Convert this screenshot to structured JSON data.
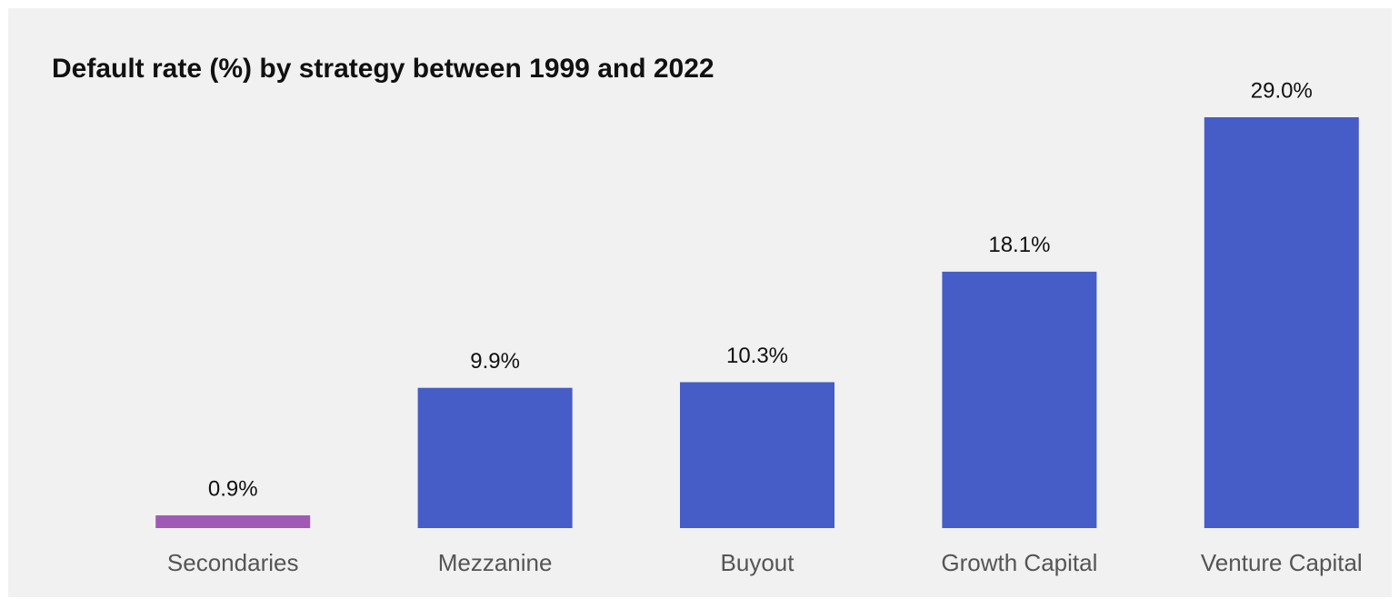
{
  "chart_data": {
    "type": "bar",
    "title": "Default rate (%) by strategy between 1999 and 2022",
    "categories": [
      "Secondaries",
      "Mezzanine",
      "Buyout",
      "Growth Capital",
      "Venture Capital"
    ],
    "values": [
      0.9,
      9.9,
      10.3,
      18.1,
      29.0
    ],
    "value_labels": [
      "0.9%",
      "9.9%",
      "10.3%",
      "18.1%",
      "29.0%"
    ],
    "colors": [
      "#a05ab4",
      "#465cc6",
      "#465cc6",
      "#465cc6",
      "#465cc6"
    ]
  }
}
